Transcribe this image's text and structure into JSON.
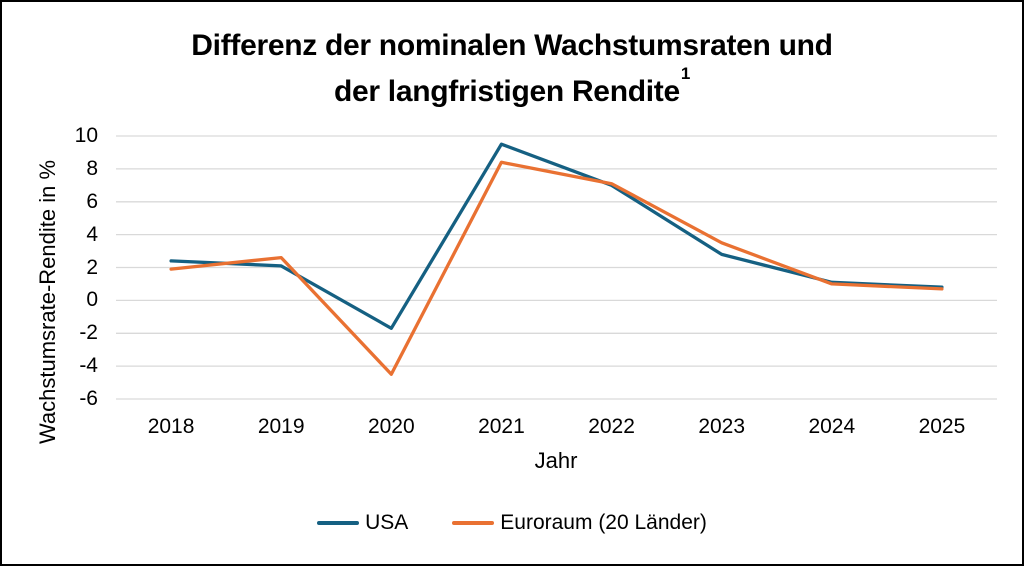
{
  "window": {
    "background_color": "#ffffff",
    "frame_color": "#000000"
  },
  "chart_data": {
    "type": "line",
    "title_line1": "Differenz der nominalen Wachstumsraten und",
    "title_line2": "der langfristigen Rendite",
    "title_superscript": "1",
    "xlabel": "Jahr",
    "ylabel": "Wachstumsrate-Rendite in %",
    "categories": [
      "2018",
      "2019",
      "2020",
      "2021",
      "2022",
      "2023",
      "2024",
      "2025"
    ],
    "series": [
      {
        "name": "USA",
        "color": "#156082",
        "values": [
          2.4,
          2.1,
          -1.7,
          9.5,
          7.0,
          2.8,
          1.1,
          0.8
        ]
      },
      {
        "name": "Euroraum (20 Länder)",
        "color": "#E97132",
        "values": [
          1.9,
          2.6,
          -4.5,
          8.4,
          7.1,
          3.5,
          1.0,
          0.7
        ]
      }
    ],
    "ylim": [
      -6,
      10
    ],
    "ytick_step": 2,
    "grid": "horizontal",
    "gridline_color": "#D9D9D9",
    "legend_position": "bottom",
    "text_color": "#000000"
  }
}
